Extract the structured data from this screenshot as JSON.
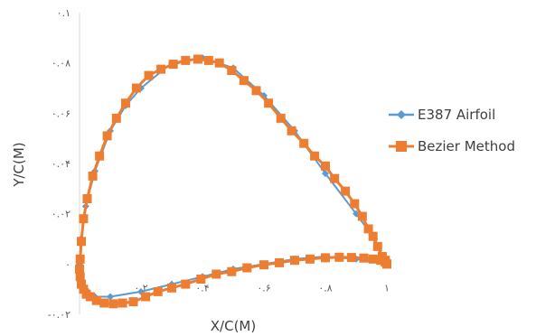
{
  "chart_data": {
    "type": "line",
    "xlabel": "X/C(M)",
    "ylabel": "Y/C(M)",
    "xlim": [
      0,
      1
    ],
    "ylim": [
      -0.02,
      0.1
    ],
    "x_ticks": [
      {
        "value": 0.2,
        "label": "۰.۲"
      },
      {
        "value": 0.4,
        "label": "۰.۴"
      },
      {
        "value": 0.6,
        "label": "۰.۶"
      },
      {
        "value": 0.8,
        "label": "۰.۸"
      },
      {
        "value": 1.0,
        "label": "۱"
      }
    ],
    "y_ticks": [
      {
        "value": -0.02,
        "label": "-۰.۰۲"
      },
      {
        "value": 0.0,
        "label": "۰"
      },
      {
        "value": 0.02,
        "label": "۰.۰۲"
      },
      {
        "value": 0.04,
        "label": "۰.۰۴"
      },
      {
        "value": 0.06,
        "label": "۰.۰۶"
      },
      {
        "value": 0.08,
        "label": "۰.۰۸"
      },
      {
        "value": 0.1,
        "label": "۰.۱"
      }
    ],
    "grid": false,
    "legend_position": "right",
    "series": [
      {
        "name": "E387 Airfoil",
        "color": "#5b9bd5",
        "marker": "diamond",
        "x": [
          1.0,
          0.96,
          0.9,
          0.8,
          0.7,
          0.6,
          0.5,
          0.4,
          0.3,
          0.2,
          0.15,
          0.1,
          0.05,
          0.02,
          0.005,
          0.0,
          0.005,
          0.02,
          0.05,
          0.1,
          0.2,
          0.3,
          0.4,
          0.5,
          0.6,
          0.7,
          0.8,
          0.9,
          1.0
        ],
        "y": [
          0.0,
          0.01,
          0.02,
          0.036,
          0.053,
          0.067,
          0.078,
          0.082,
          0.08,
          0.07,
          0.063,
          0.053,
          0.037,
          0.023,
          0.01,
          0.0,
          -0.006,
          -0.01,
          -0.013,
          -0.013,
          -0.011,
          -0.008,
          -0.005,
          -0.002,
          0.0,
          0.002,
          0.003,
          0.002,
          0.0
        ]
      },
      {
        "name": "Bezier Method",
        "color": "#ed7d31",
        "marker": "square",
        "x": [
          1.0,
          0.995,
          0.985,
          0.97,
          0.955,
          0.94,
          0.92,
          0.895,
          0.865,
          0.83,
          0.8,
          0.765,
          0.73,
          0.69,
          0.655,
          0.615,
          0.575,
          0.535,
          0.495,
          0.455,
          0.42,
          0.385,
          0.345,
          0.305,
          0.265,
          0.225,
          0.185,
          0.15,
          0.12,
          0.09,
          0.065,
          0.043,
          0.025,
          0.013,
          0.006,
          0.002,
          0.0,
          0.002,
          0.006,
          0.013,
          0.022,
          0.035,
          0.055,
          0.08,
          0.11,
          0.14,
          0.175,
          0.215,
          0.255,
          0.3,
          0.345,
          0.395,
          0.445,
          0.495,
          0.545,
          0.6,
          0.65,
          0.7,
          0.75,
          0.8,
          0.845,
          0.885,
          0.925,
          0.955,
          0.98,
          0.995,
          1.0
        ],
        "y": [
          0.0,
          0.0015,
          0.003,
          0.007,
          0.011,
          0.014,
          0.019,
          0.024,
          0.029,
          0.034,
          0.039,
          0.043,
          0.048,
          0.053,
          0.058,
          0.064,
          0.069,
          0.073,
          0.077,
          0.08,
          0.081,
          0.0815,
          0.081,
          0.0795,
          0.0775,
          0.075,
          0.07,
          0.064,
          0.058,
          0.051,
          0.043,
          0.035,
          0.026,
          0.018,
          0.009,
          0.002,
          -0.002,
          -0.005,
          -0.008,
          -0.01,
          -0.012,
          -0.013,
          -0.0145,
          -0.0155,
          -0.0158,
          -0.0155,
          -0.015,
          -0.013,
          -0.011,
          -0.0095,
          -0.008,
          -0.006,
          -0.004,
          -0.003,
          -0.0015,
          -0.0003,
          0.0005,
          0.0015,
          0.002,
          0.0025,
          0.0027,
          0.0026,
          0.0024,
          0.002,
          0.0015,
          0.0008,
          0.0
        ]
      }
    ]
  }
}
